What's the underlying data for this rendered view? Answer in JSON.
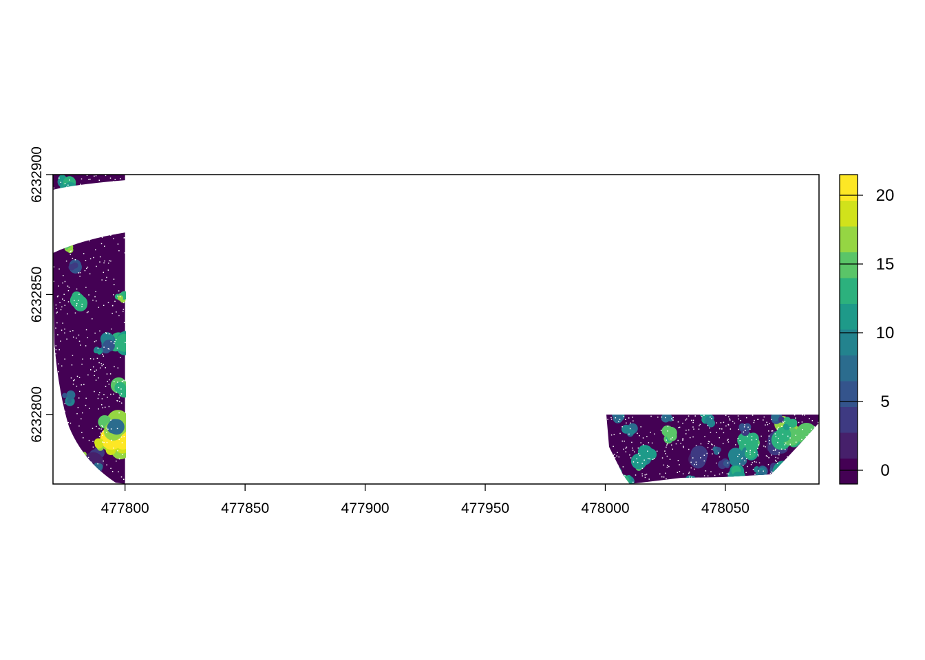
{
  "chart_data": {
    "type": "heatmap",
    "title": "",
    "xlabel": "",
    "ylabel": "",
    "xlim": [
      477770,
      478089
    ],
    "ylim": [
      6232771,
      6232900
    ],
    "x_ticks": [
      477800,
      477850,
      477900,
      477950,
      478000,
      478050
    ],
    "x_tick_labels": [
      "477800",
      "477850",
      "477900",
      "477950",
      "478000",
      "478050"
    ],
    "y_ticks": [
      6232800,
      6232850,
      6232900
    ],
    "y_tick_labels": [
      "6232800",
      "6232850",
      "6232900"
    ],
    "legend": {
      "position": "right",
      "ticks": [
        0,
        5,
        10,
        15,
        20
      ],
      "tick_labels": [
        "0",
        "5",
        "10",
        "15",
        "20"
      ],
      "range": [
        -1,
        21.5
      ],
      "colors": [
        "#440154",
        "#46206b",
        "#3e3a82",
        "#34548c",
        "#2b6c8e",
        "#23838e",
        "#1e9a89",
        "#2cb17d",
        "#5ac568",
        "#95d643",
        "#d1e21b",
        "#fde725"
      ]
    },
    "regions": [
      {
        "name": "west-strip",
        "x_range": [
          477770,
          477800
        ],
        "y_range": [
          6232771,
          6232900
        ],
        "typical_value": 0,
        "max_value": 21
      },
      {
        "name": "east-strip",
        "x_range": [
          478000,
          478089
        ],
        "y_range": [
          6232771,
          6232800
        ],
        "typical_value": 0,
        "max_value": 17
      }
    ],
    "grid": false
  }
}
